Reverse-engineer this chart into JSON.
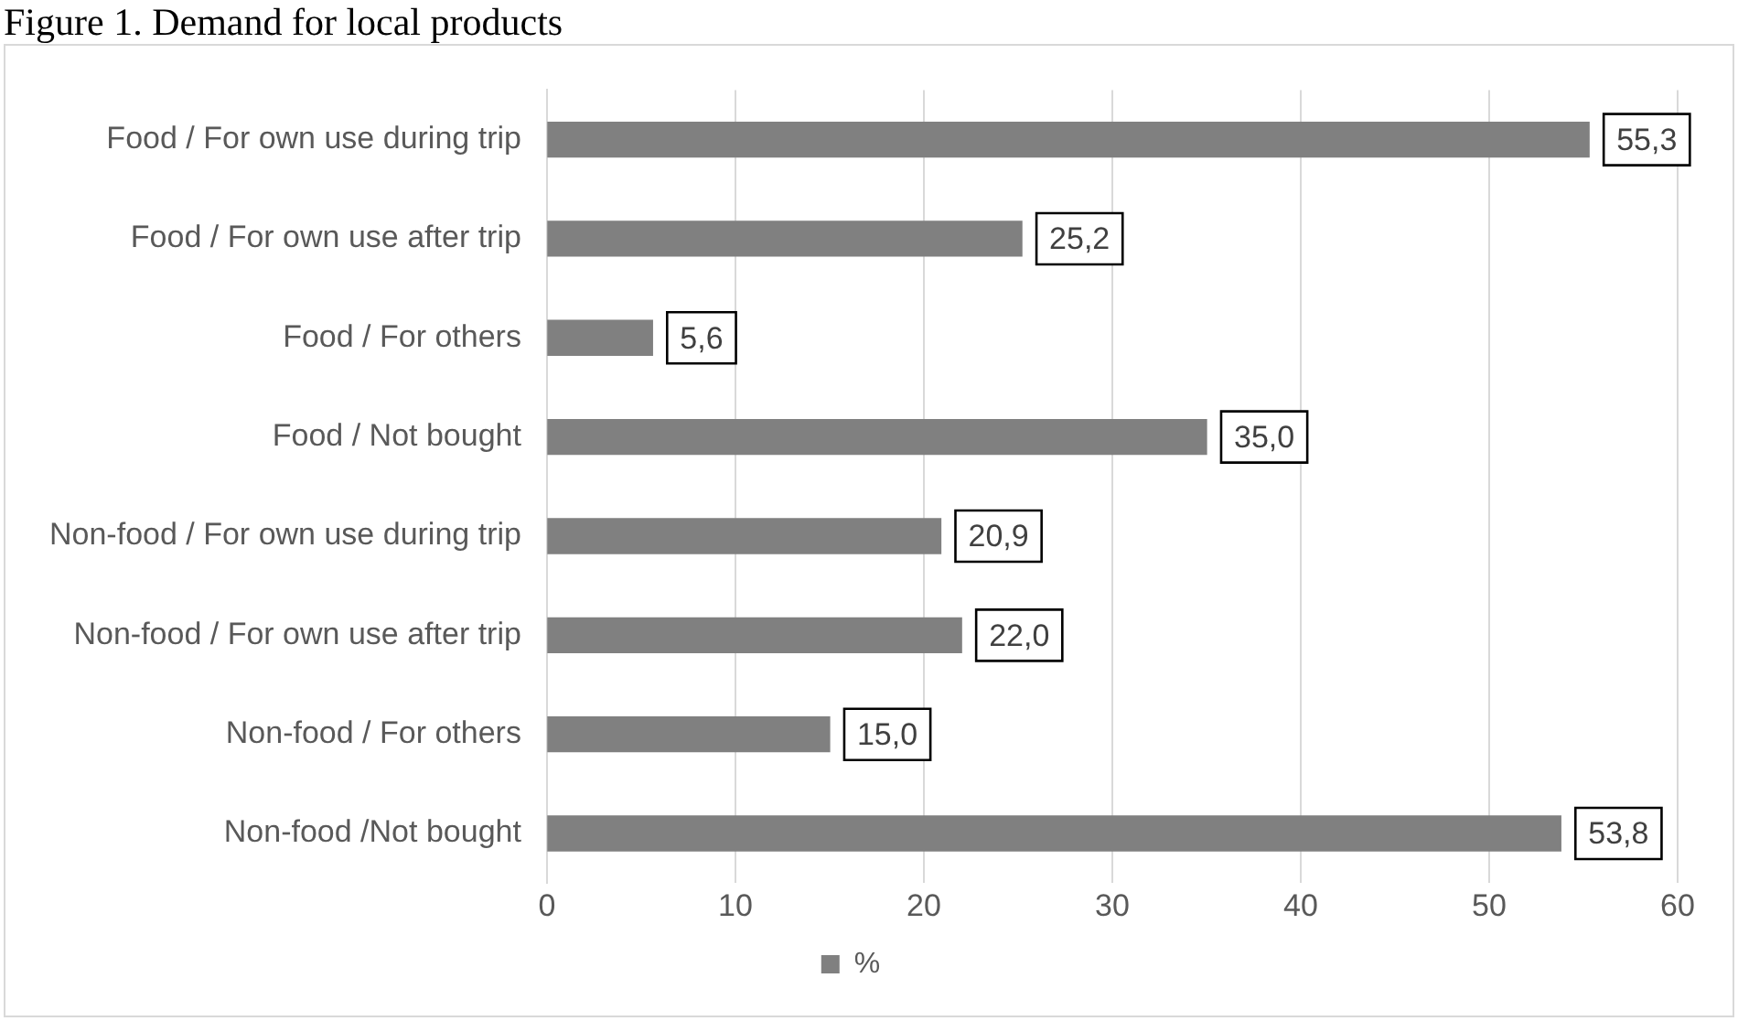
{
  "chart_data": {
    "type": "bar",
    "orientation": "horizontal",
    "title": "Figure 1. Demand for local products",
    "categories": [
      "Food / For own use during trip",
      "Food / For own use after trip",
      "Food / For others",
      "Food / Not bought",
      "Non-food / For own use during trip",
      "Non-food / For own use after trip",
      "Non-food / For others",
      "Non-food /Not bought"
    ],
    "series": [
      {
        "name": "%",
        "color": "#808080",
        "values": [
          55.3,
          25.2,
          5.6,
          35.0,
          20.9,
          22.0,
          15.0,
          53.8
        ],
        "value_labels": [
          "55,3",
          "25,2",
          "5,6",
          "35,0",
          "20,9",
          "22,0",
          "15,0",
          "53,8"
        ]
      }
    ],
    "xlim": [
      0,
      60
    ],
    "xticks": [
      0,
      10,
      20,
      30,
      40,
      50,
      60
    ],
    "grid": "x",
    "legend": "bottom"
  }
}
